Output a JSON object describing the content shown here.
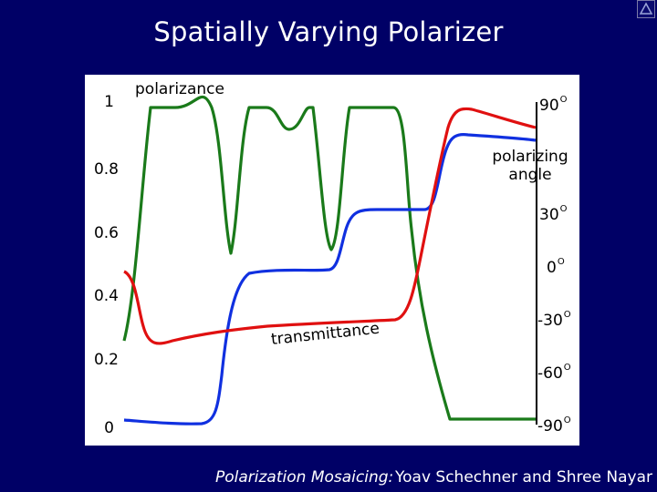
{
  "slide": {
    "title": "Spatially Varying Polarizer",
    "footer": {
      "title": "Polarization Mosaicing",
      "colon": ":",
      "authors": "Yoav Schechner  and  Shree Nayar"
    }
  },
  "plot": {
    "left_axis": {
      "label": "polarizance",
      "ticks": [
        "1",
        "0.8",
        "0.6",
        "0.4",
        "0.2",
        "0"
      ]
    },
    "right_axis": {
      "label_line1": "polarizing",
      "label_line2": "angle",
      "ticks": [
        "90",
        "30",
        "0",
        "-30",
        "-60",
        "-90"
      ],
      "degree_symbol": "O"
    },
    "curve_label": "transmittance",
    "colors": {
      "polarizance": "#1a7a1a",
      "transmittance": "#e01010",
      "angle": "#1030e0"
    }
  }
}
